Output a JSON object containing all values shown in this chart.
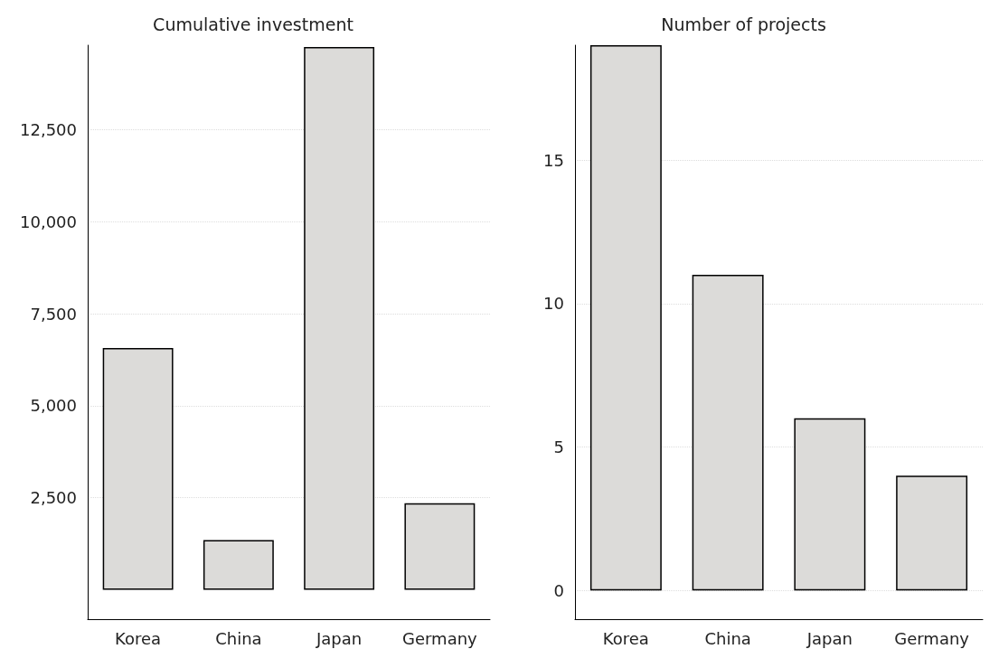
{
  "chart_data": [
    {
      "type": "bar",
      "title": "Cumulative investment",
      "categories": [
        "Korea",
        "China",
        "Japan",
        "Germany"
      ],
      "values": [
        6570,
        1350,
        14750,
        2350
      ],
      "color": "#dcdbd9",
      "ylim": [
        -800,
        14800
      ],
      "yticks": [
        {
          "value": 2500,
          "label": "2,500"
        },
        {
          "value": 5000,
          "label": "5,000"
        },
        {
          "value": 7500,
          "label": "7,500"
        },
        {
          "value": 10000,
          "label": "10,000"
        },
        {
          "value": 12500,
          "label": "12,500"
        }
      ],
      "grid": "y"
    },
    {
      "type": "bar",
      "title": "Number of projects",
      "categories": [
        "Korea",
        "China",
        "Japan",
        "Germany"
      ],
      "values": [
        19,
        11,
        6,
        4
      ],
      "color": "#dcdbd9",
      "ylim": [
        -1,
        19
      ],
      "yticks": [
        0,
        5,
        10,
        15
      ],
      "grid": "y"
    }
  ]
}
